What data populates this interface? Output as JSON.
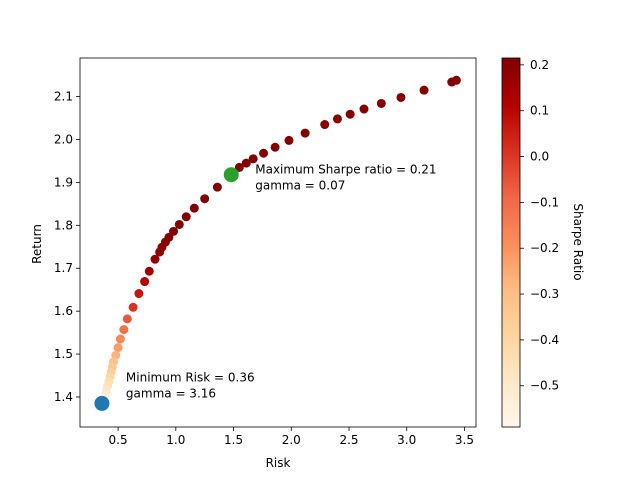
{
  "chart_data": {
    "type": "scatter",
    "xlabel": "Risk",
    "ylabel": "Return",
    "xlim": [
      0.17,
      3.6
    ],
    "ylim": [
      1.33,
      2.19
    ],
    "x_ticks": [
      "0.5",
      "1.0",
      "1.5",
      "2.0",
      "2.5",
      "3.0",
      "3.5"
    ],
    "y_ticks": [
      "1.4",
      "1.5",
      "1.6",
      "1.7",
      "1.8",
      "1.9",
      "2.0",
      "2.1"
    ],
    "x_tick_values": [
      0.5,
      1.0,
      1.5,
      2.0,
      2.5,
      3.0,
      3.5
    ],
    "y_tick_values": [
      1.4,
      1.5,
      1.6,
      1.7,
      1.8,
      1.9,
      2.0,
      2.1
    ],
    "grid": false,
    "colorbar": {
      "label": "Sharpe Ratio",
      "range": [
        -0.59,
        0.215
      ],
      "ticks": [
        "0.2",
        "0.1",
        "0.0",
        "−0.1",
        "−0.2",
        "−0.3",
        "−0.4",
        "−0.5"
      ],
      "tick_values": [
        0.2,
        0.1,
        0.0,
        -0.1,
        -0.2,
        -0.3,
        -0.4,
        -0.5
      ],
      "colormap": "OrRd"
    },
    "points": [
      {
        "x": 3.43,
        "y": 2.138,
        "s": 0.21
      },
      {
        "x": 3.39,
        "y": 2.134,
        "s": 0.21
      },
      {
        "x": 3.15,
        "y": 2.115,
        "s": 0.21
      },
      {
        "x": 2.95,
        "y": 2.098,
        "s": 0.21
      },
      {
        "x": 2.78,
        "y": 2.084,
        "s": 0.21
      },
      {
        "x": 2.63,
        "y": 2.071,
        "s": 0.21
      },
      {
        "x": 2.51,
        "y": 2.059,
        "s": 0.21
      },
      {
        "x": 2.4,
        "y": 2.048,
        "s": 0.21
      },
      {
        "x": 2.29,
        "y": 2.035,
        "s": 0.21
      },
      {
        "x": 2.12,
        "y": 2.015,
        "s": 0.21
      },
      {
        "x": 1.98,
        "y": 1.998,
        "s": 0.21
      },
      {
        "x": 1.86,
        "y": 1.982,
        "s": 0.21
      },
      {
        "x": 1.76,
        "y": 1.968,
        "s": 0.21
      },
      {
        "x": 1.67,
        "y": 1.955,
        "s": 0.21
      },
      {
        "x": 1.61,
        "y": 1.945,
        "s": 0.21
      },
      {
        "x": 1.55,
        "y": 1.935,
        "s": 0.21
      },
      {
        "x": 1.36,
        "y": 1.889,
        "s": 0.21
      },
      {
        "x": 1.25,
        "y": 1.862,
        "s": 0.21
      },
      {
        "x": 1.16,
        "y": 1.84,
        "s": 0.21
      },
      {
        "x": 1.09,
        "y": 1.82,
        "s": 0.21
      },
      {
        "x": 1.03,
        "y": 1.802,
        "s": 0.21
      },
      {
        "x": 0.98,
        "y": 1.786,
        "s": 0.21
      },
      {
        "x": 0.94,
        "y": 1.772,
        "s": 0.205
      },
      {
        "x": 0.91,
        "y": 1.761,
        "s": 0.2
      },
      {
        "x": 0.88,
        "y": 1.749,
        "s": 0.195
      },
      {
        "x": 0.86,
        "y": 1.738,
        "s": 0.19
      },
      {
        "x": 0.82,
        "y": 1.721,
        "s": 0.18
      },
      {
        "x": 0.77,
        "y": 1.693,
        "s": 0.15
      },
      {
        "x": 0.73,
        "y": 1.669,
        "s": 0.12
      },
      {
        "x": 0.68,
        "y": 1.641,
        "s": 0.07
      },
      {
        "x": 0.63,
        "y": 1.609,
        "s": 0.01
      },
      {
        "x": 0.58,
        "y": 1.582,
        "s": -0.06
      },
      {
        "x": 0.55,
        "y": 1.557,
        "s": -0.12
      },
      {
        "x": 0.52,
        "y": 1.535,
        "s": -0.17
      },
      {
        "x": 0.5,
        "y": 1.515,
        "s": -0.22
      },
      {
        "x": 0.48,
        "y": 1.497,
        "s": -0.27
      },
      {
        "x": 0.46,
        "y": 1.482,
        "s": -0.31
      },
      {
        "x": 0.45,
        "y": 1.47,
        "s": -0.34
      },
      {
        "x": 0.44,
        "y": 1.458,
        "s": -0.37
      },
      {
        "x": 0.43,
        "y": 1.447,
        "s": -0.4
      },
      {
        "x": 0.42,
        "y": 1.436,
        "s": -0.43
      },
      {
        "x": 0.41,
        "y": 1.426,
        "s": -0.46
      },
      {
        "x": 0.4,
        "y": 1.416,
        "s": -0.49
      },
      {
        "x": 0.39,
        "y": 1.406,
        "s": -0.52
      },
      {
        "x": 0.38,
        "y": 1.397,
        "s": -0.55
      }
    ],
    "highlights": [
      {
        "name": "Maximum Sharpe ratio",
        "x": 1.48,
        "y": 1.918,
        "color": "#2ca02c",
        "label_line1": "Maximum Sharpe ratio = 0.21",
        "label_line2": "gamma = 0.07"
      },
      {
        "name": "Minimum Risk",
        "x": 0.36,
        "y": 1.385,
        "color": "#1f77b4",
        "label_line1": "Minimum Risk = 0.36",
        "label_line2": "gamma = 3.16"
      }
    ]
  }
}
